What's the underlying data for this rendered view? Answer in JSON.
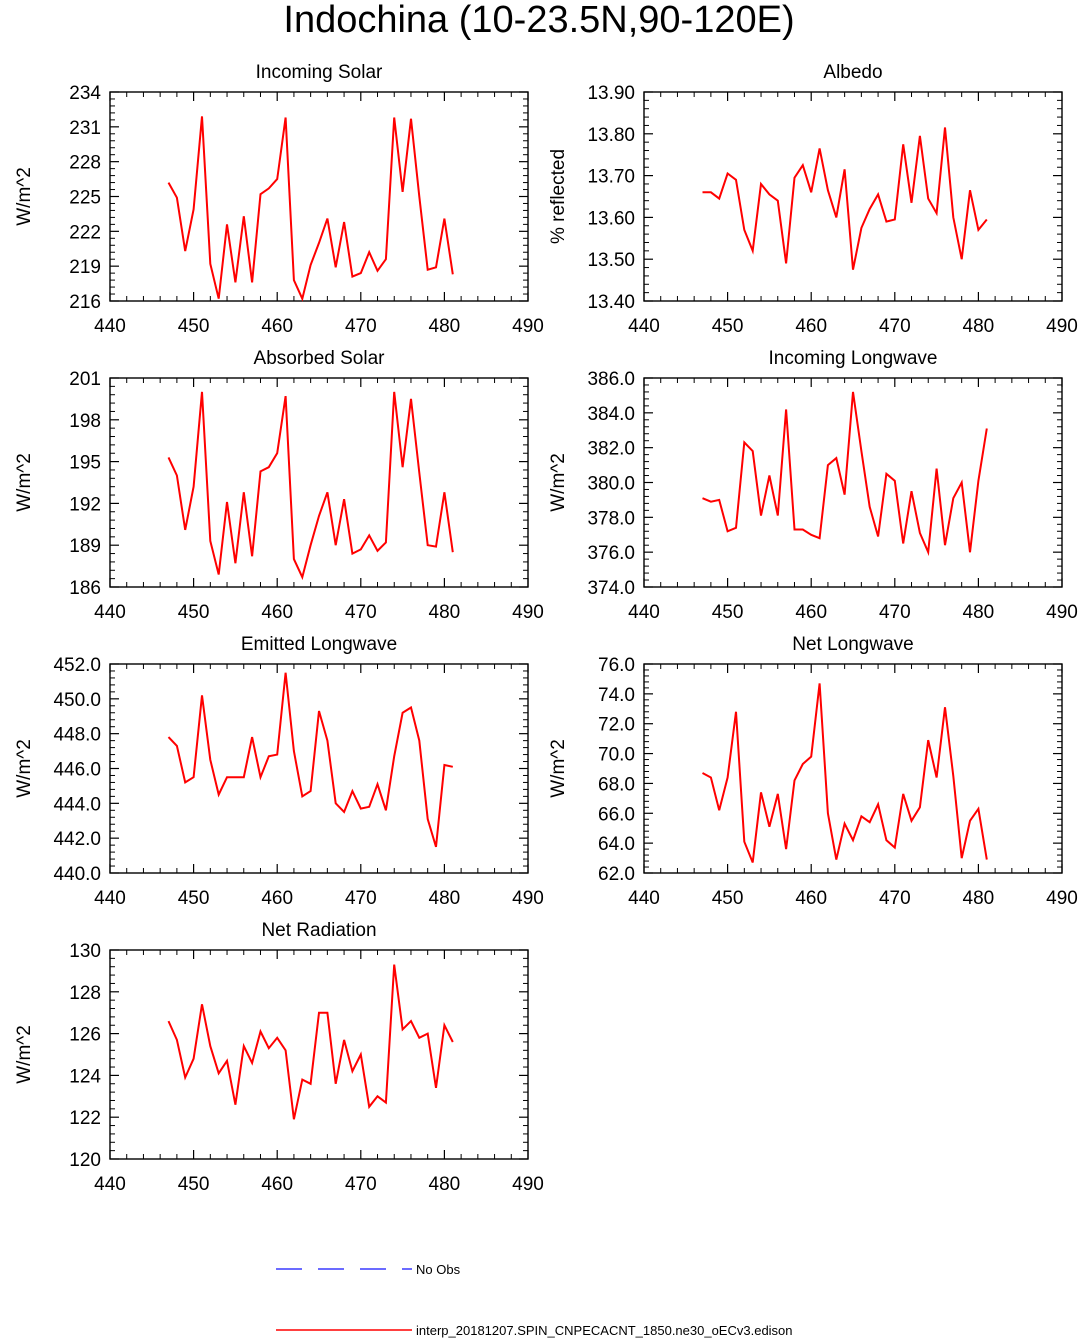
{
  "title": "Indochina (10-23.5N,90-120E)",
  "colors": {
    "model": "#ff0000",
    "obs": "#3a3aff",
    "axis": "#000000"
  },
  "legend": {
    "obs_label": "No Obs",
    "model_label": "interp_20181207.SPIN_CNPECACNT_1850.ne30_oECv3.edison"
  },
  "chart_data": [
    {
      "type": "line",
      "title": "Incoming Solar",
      "ylabel": "W/m^2",
      "xlim": [
        440,
        490
      ],
      "ylim": [
        216,
        234
      ],
      "xticks": [
        440,
        450,
        460,
        470,
        480,
        490
      ],
      "yticks": [
        216,
        219,
        222,
        225,
        228,
        231,
        234
      ],
      "ytick_labels": [
        "216",
        "219",
        "222",
        "225",
        "228",
        "231",
        "234"
      ],
      "x": [
        447,
        448,
        449,
        450,
        451,
        452,
        453,
        454,
        455,
        456,
        457,
        458,
        459,
        460,
        461,
        462,
        463,
        464,
        465,
        466,
        467,
        468,
        469,
        470,
        471,
        472,
        473,
        474,
        475,
        476,
        477,
        478,
        479,
        480,
        481
      ],
      "series": [
        {
          "name": "model",
          "values": [
            226.2,
            224.9,
            220.3,
            223.9,
            231.9,
            219.2,
            216.2,
            222.6,
            217.6,
            223.3,
            217.6,
            225.2,
            225.7,
            226.5,
            231.8,
            217.8,
            216.2,
            219.1,
            221.0,
            223.1,
            218.9,
            222.8,
            218.1,
            218.4,
            220.2,
            218.6,
            219.6,
            231.8,
            225.4,
            231.7,
            225.0,
            218.7,
            218.9,
            223.1,
            218.3
          ]
        }
      ]
    },
    {
      "type": "line",
      "title": "Albedo",
      "ylabel": "% reflected",
      "xlim": [
        440,
        490
      ],
      "ylim": [
        13.4,
        13.9
      ],
      "xticks": [
        440,
        450,
        460,
        470,
        480,
        490
      ],
      "yticks": [
        13.4,
        13.5,
        13.6,
        13.7,
        13.8,
        13.9
      ],
      "ytick_labels": [
        "13.40",
        "13.50",
        "13.60",
        "13.70",
        "13.80",
        "13.90"
      ],
      "x": [
        447,
        448,
        449,
        450,
        451,
        452,
        453,
        454,
        455,
        456,
        457,
        458,
        459,
        460,
        461,
        462,
        463,
        464,
        465,
        466,
        467,
        468,
        469,
        470,
        471,
        472,
        473,
        474,
        475,
        476,
        477,
        478,
        479,
        480,
        481
      ],
      "series": [
        {
          "name": "model",
          "values": [
            13.66,
            13.66,
            13.645,
            13.705,
            13.69,
            13.57,
            13.52,
            13.68,
            13.655,
            13.64,
            13.49,
            13.695,
            13.725,
            13.66,
            13.765,
            13.665,
            13.6,
            13.715,
            13.475,
            13.575,
            13.62,
            13.655,
            13.59,
            13.595,
            13.775,
            13.635,
            13.795,
            13.645,
            13.61,
            13.815,
            13.6,
            13.5,
            13.665,
            13.57,
            13.595
          ]
        }
      ]
    },
    {
      "type": "line",
      "title": "Absorbed Solar",
      "ylabel": "W/m^2",
      "xlim": [
        440,
        490
      ],
      "ylim": [
        186,
        201
      ],
      "xticks": [
        440,
        450,
        460,
        470,
        480,
        490
      ],
      "yticks": [
        186,
        189,
        192,
        195,
        198,
        201
      ],
      "ytick_labels": [
        "186",
        "189",
        "192",
        "195",
        "198",
        "201"
      ],
      "x": [
        447,
        448,
        449,
        450,
        451,
        452,
        453,
        454,
        455,
        456,
        457,
        458,
        459,
        460,
        461,
        462,
        463,
        464,
        465,
        466,
        467,
        468,
        469,
        470,
        471,
        472,
        473,
        474,
        475,
        476,
        477,
        478,
        479,
        480,
        481
      ],
      "series": [
        {
          "name": "model",
          "values": [
            195.3,
            194.0,
            190.1,
            193.2,
            200.0,
            189.3,
            186.9,
            192.1,
            187.7,
            192.8,
            188.2,
            194.3,
            194.6,
            195.6,
            199.7,
            188.0,
            186.7,
            189.0,
            191.1,
            192.8,
            189.0,
            192.3,
            188.4,
            188.7,
            189.7,
            188.6,
            189.2,
            200.0,
            194.6,
            199.5,
            194.2,
            189.0,
            188.9,
            192.8,
            188.5
          ]
        }
      ]
    },
    {
      "type": "line",
      "title": "Incoming Longwave",
      "ylabel": "W/m^2",
      "xlim": [
        440,
        490
      ],
      "ylim": [
        374,
        386
      ],
      "xticks": [
        440,
        450,
        460,
        470,
        480,
        490
      ],
      "yticks": [
        374,
        376,
        378,
        380,
        382,
        384,
        386
      ],
      "ytick_labels": [
        "374.0",
        "376.0",
        "378.0",
        "380.0",
        "382.0",
        "384.0",
        "386.0"
      ],
      "x": [
        447,
        448,
        449,
        450,
        451,
        452,
        453,
        454,
        455,
        456,
        457,
        458,
        459,
        460,
        461,
        462,
        463,
        464,
        465,
        466,
        467,
        468,
        469,
        470,
        471,
        472,
        473,
        474,
        475,
        476,
        477,
        478,
        479,
        480,
        481
      ],
      "series": [
        {
          "name": "model",
          "values": [
            379.1,
            378.9,
            379.0,
            377.2,
            377.4,
            382.3,
            381.8,
            378.1,
            380.4,
            378.1,
            384.2,
            377.3,
            377.3,
            377.0,
            376.8,
            381.0,
            381.4,
            379.3,
            385.2,
            381.8,
            378.6,
            376.9,
            380.5,
            380.1,
            376.5,
            379.5,
            377.1,
            376.0,
            380.8,
            376.4,
            379.1,
            380.0,
            376.0,
            380.1,
            383.1
          ]
        }
      ]
    },
    {
      "type": "line",
      "title": "Emitted Longwave",
      "ylabel": "W/m^2",
      "xlim": [
        440,
        490
      ],
      "ylim": [
        440,
        452
      ],
      "xticks": [
        440,
        450,
        460,
        470,
        480,
        490
      ],
      "yticks": [
        440,
        442,
        444,
        446,
        448,
        450,
        452
      ],
      "ytick_labels": [
        "440.0",
        "442.0",
        "444.0",
        "446.0",
        "448.0",
        "450.0",
        "452.0"
      ],
      "x": [
        447,
        448,
        449,
        450,
        451,
        452,
        453,
        454,
        455,
        456,
        457,
        458,
        459,
        460,
        461,
        462,
        463,
        464,
        465,
        466,
        467,
        468,
        469,
        470,
        471,
        472,
        473,
        474,
        475,
        476,
        477,
        478,
        479,
        480,
        481
      ],
      "series": [
        {
          "name": "model",
          "values": [
            447.8,
            447.3,
            445.2,
            445.5,
            450.2,
            446.5,
            444.5,
            445.5,
            445.5,
            445.5,
            447.8,
            445.5,
            446.7,
            446.8,
            451.5,
            447.0,
            444.4,
            444.7,
            449.3,
            447.6,
            444.0,
            443.5,
            444.7,
            443.7,
            443.8,
            445.1,
            443.6,
            446.7,
            449.2,
            449.5,
            447.6,
            443.1,
            441.5,
            446.2,
            446.1
          ]
        }
      ]
    },
    {
      "type": "line",
      "title": "Net Longwave",
      "ylabel": "W/m^2",
      "xlim": [
        440,
        490
      ],
      "ylim": [
        62,
        76
      ],
      "xticks": [
        440,
        450,
        460,
        470,
        480,
        490
      ],
      "yticks": [
        62,
        64,
        66,
        68,
        70,
        72,
        74,
        76
      ],
      "ytick_labels": [
        "62.0",
        "64.0",
        "66.0",
        "68.0",
        "70.0",
        "72.0",
        "74.0",
        "76.0"
      ],
      "x": [
        447,
        448,
        449,
        450,
        451,
        452,
        453,
        454,
        455,
        456,
        457,
        458,
        459,
        460,
        461,
        462,
        463,
        464,
        465,
        466,
        467,
        468,
        469,
        470,
        471,
        472,
        473,
        474,
        475,
        476,
        477,
        478,
        479,
        480,
        481
      ],
      "series": [
        {
          "name": "model",
          "values": [
            68.7,
            68.4,
            66.2,
            68.4,
            72.8,
            64.1,
            62.7,
            67.4,
            65.1,
            67.3,
            63.6,
            68.2,
            69.3,
            69.8,
            74.7,
            66.0,
            62.9,
            65.3,
            64.2,
            65.8,
            65.4,
            66.6,
            64.2,
            63.7,
            67.3,
            65.5,
            66.4,
            70.9,
            68.4,
            73.1,
            68.5,
            63.0,
            65.5,
            66.3,
            62.9
          ]
        }
      ]
    },
    {
      "type": "line",
      "title": "Net Radiation",
      "ylabel": "W/m^2",
      "xlim": [
        440,
        490
      ],
      "ylim": [
        120,
        130
      ],
      "xticks": [
        440,
        450,
        460,
        470,
        480,
        490
      ],
      "yticks": [
        120,
        122,
        124,
        126,
        128,
        130
      ],
      "ytick_labels": [
        "120",
        "122",
        "124",
        "126",
        "128",
        "130"
      ],
      "x": [
        447,
        448,
        449,
        450,
        451,
        452,
        453,
        454,
        455,
        456,
        457,
        458,
        459,
        460,
        461,
        462,
        463,
        464,
        465,
        466,
        467,
        468,
        469,
        470,
        471,
        472,
        473,
        474,
        475,
        476,
        477,
        478,
        479,
        480,
        481
      ],
      "series": [
        {
          "name": "model",
          "values": [
            126.6,
            125.7,
            123.9,
            124.8,
            127.4,
            125.4,
            124.1,
            124.7,
            122.6,
            125.4,
            124.6,
            126.1,
            125.3,
            125.8,
            125.2,
            121.9,
            123.8,
            123.6,
            127.0,
            127.0,
            123.6,
            125.7,
            124.2,
            125.0,
            122.5,
            123.0,
            122.7,
            129.3,
            126.2,
            126.6,
            125.8,
            126.0,
            123.4,
            126.4,
            125.6
          ]
        }
      ]
    }
  ]
}
